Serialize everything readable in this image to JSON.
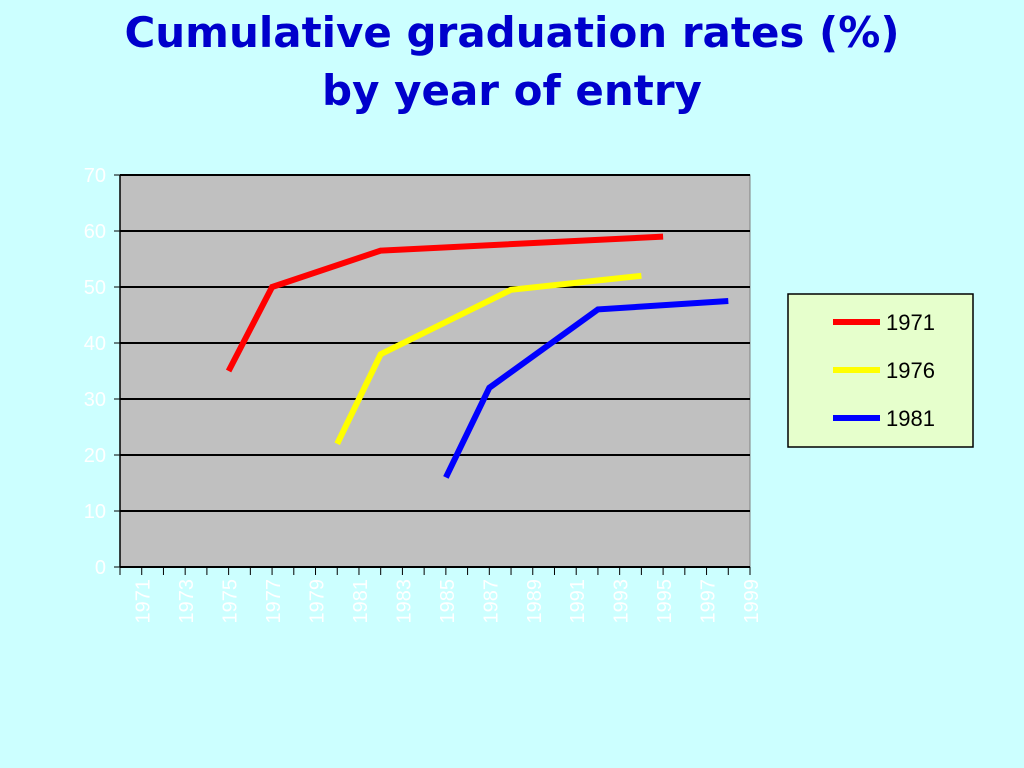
{
  "title_line1": "Cumulative graduation rates (%)",
  "title_line2": "by year of entry",
  "colors": {
    "background": "#ccffff",
    "plot_area": "#c0c0c0",
    "legend_bg": "#e6ffcc",
    "title": "#0000cc",
    "tick_labels": "#ffffff"
  },
  "chart_data": {
    "type": "line",
    "title": "Cumulative graduation rates (%) by year of entry",
    "xlabel": "",
    "ylabel": "",
    "xlim": [
      1970,
      1999
    ],
    "ylim": [
      0,
      70
    ],
    "yticks": [
      0,
      10,
      20,
      30,
      40,
      50,
      60,
      70
    ],
    "x_tick_labels": [
      "1971",
      "1973",
      "1975",
      "1977",
      "1979",
      "1981",
      "1983",
      "1985",
      "1987",
      "1989",
      "1991",
      "1993",
      "1995",
      "1997",
      "1999"
    ],
    "grid": true,
    "legend_position": "right",
    "series": [
      {
        "name": "1971",
        "color": "#ff0000",
        "x": [
          1975,
          1977,
          1982,
          1995
        ],
        "y": [
          35,
          50,
          56.5,
          59
        ]
      },
      {
        "name": "1976",
        "color": "#ffff00",
        "x": [
          1980,
          1982,
          1988,
          1994
        ],
        "y": [
          22,
          38,
          49.5,
          52
        ]
      },
      {
        "name": "1981",
        "color": "#0000ff",
        "x": [
          1985,
          1987,
          1992,
          1998
        ],
        "y": [
          16,
          32,
          46,
          47.5
        ]
      }
    ]
  }
}
